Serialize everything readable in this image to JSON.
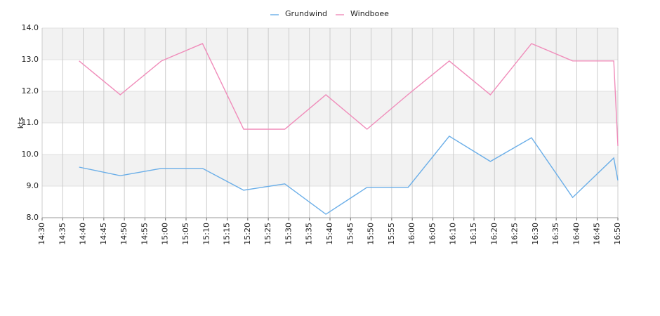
{
  "chart_data": {
    "type": "line",
    "x": [
      "14:39",
      "14:49",
      "14:59",
      "15:09",
      "15:19",
      "15:29",
      "15:39",
      "15:49",
      "15:59",
      "16:09",
      "16:19",
      "16:29",
      "16:39",
      "16:49",
      "16:50"
    ],
    "series": [
      {
        "name": "Grundwind",
        "color": "#6aaee8",
        "values": [
          9.6,
          9.33,
          9.56,
          9.56,
          8.87,
          9.07,
          8.11,
          8.96,
          8.96,
          10.58,
          9.78,
          10.53,
          8.64,
          9.89,
          9.18
        ]
      },
      {
        "name": "Windboee",
        "color": "#f08cba",
        "values": [
          12.96,
          11.89,
          12.96,
          13.51,
          10.8,
          10.8,
          11.89,
          10.8,
          11.9,
          12.96,
          11.89,
          13.51,
          12.96,
          12.96,
          10.27
        ]
      }
    ],
    "ylabel": "kts",
    "xlim": [
      "14:30",
      "16:50"
    ],
    "xticks": [
      "14:30",
      "14:35",
      "14:40",
      "14:45",
      "14:50",
      "14:55",
      "15:00",
      "15:05",
      "15:10",
      "15:15",
      "15:20",
      "15:25",
      "15:30",
      "15:35",
      "15:40",
      "15:45",
      "15:50",
      "15:55",
      "16:00",
      "16:05",
      "16:10",
      "16:15",
      "16:20",
      "16:25",
      "16:30",
      "16:35",
      "16:40",
      "16:45",
      "16:50"
    ],
    "ylim": [
      8,
      14
    ],
    "yticks": [
      {
        "value": 8,
        "label": "8.0"
      },
      {
        "value": 9,
        "label": "9.0"
      },
      {
        "value": 10,
        "label": "10.0"
      },
      {
        "value": 11,
        "label": "11.0"
      },
      {
        "value": 12,
        "label": "12.0"
      },
      {
        "value": 13,
        "label": "13.0"
      },
      {
        "value": 14,
        "label": "14.0"
      }
    ],
    "grid": true,
    "legend": "top"
  }
}
